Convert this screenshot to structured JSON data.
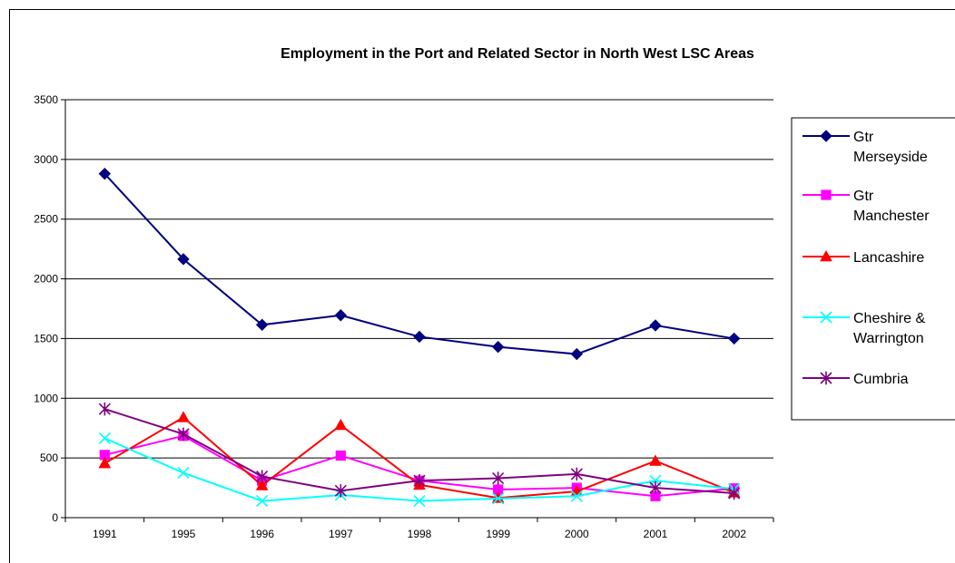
{
  "chart_data": {
    "type": "line",
    "title": "Employment in the Port and Related Sector in North West LSC Areas",
    "xlabel": "",
    "ylabel": "",
    "categories": [
      "1991",
      "1995",
      "1996",
      "1997",
      "1998",
      "1999",
      "2000",
      "2001",
      "2002"
    ],
    "ylim": [
      0,
      3500
    ],
    "yticks": [
      0,
      500,
      1000,
      1500,
      2000,
      2500,
      3000,
      3500
    ],
    "grid": "horizontal",
    "legend": "right",
    "series": [
      {
        "name": "Gtr Merseyside",
        "color": "#000080",
        "marker": "diamond",
        "values": [
          2880,
          2165,
          1615,
          1695,
          1515,
          1430,
          1370,
          1610,
          1500
        ]
      },
      {
        "name": "Gtr Manchester",
        "color": "#FF00FF",
        "marker": "square",
        "values": [
          525,
          685,
          310,
          520,
          310,
          235,
          250,
          180,
          245
        ]
      },
      {
        "name": "Lancashire",
        "color": "#FF0000",
        "marker": "triangle",
        "values": [
          455,
          840,
          270,
          775,
          275,
          165,
          220,
          475,
          210
        ]
      },
      {
        "name": "Cheshire & Warrington",
        "color": "#00FFFF",
        "marker": "x",
        "values": [
          665,
          375,
          140,
          190,
          140,
          160,
          180,
          310,
          240
        ]
      },
      {
        "name": "Cumbria",
        "color": "#800080",
        "marker": "star",
        "values": [
          910,
          700,
          345,
          225,
          310,
          330,
          365,
          250,
          205
        ]
      }
    ]
  }
}
